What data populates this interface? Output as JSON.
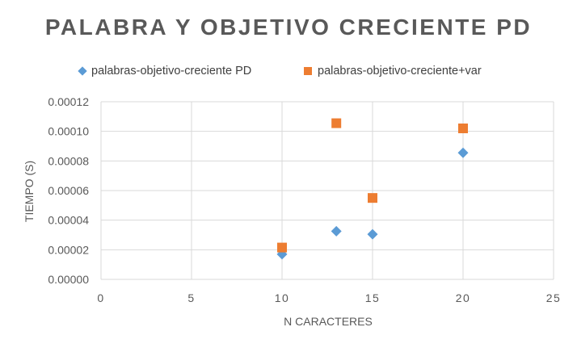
{
  "chart_data": {
    "type": "scatter",
    "title": "PALABRA Y OBJETIVO CRECIENTE PD",
    "xlabel": "N CARACTERES",
    "ylabel": "TIEMPO (S)",
    "xlim": [
      0,
      25
    ],
    "ylim": [
      0,
      0.00012
    ],
    "x_ticks": [
      "0",
      "5",
      "10",
      "15",
      "20",
      "25"
    ],
    "y_ticks": [
      "0.00000",
      "0.00002",
      "0.00004",
      "0.00006",
      "0.00008",
      "0.00010",
      "0.00012"
    ],
    "grid": true,
    "legend_position": "top",
    "series": [
      {
        "name": "palabras-objetivo-creciente PD",
        "marker": "diamond",
        "color": "#5B9BD5",
        "points": [
          [
            10,
            1.7e-05
          ],
          [
            13,
            3.25e-05
          ],
          [
            15,
            3.05e-05
          ],
          [
            20,
            8.55e-05
          ]
        ]
      },
      {
        "name": "palabras-objetivo-creciente+var",
        "marker": "square",
        "color": "#ED7D31",
        "points": [
          [
            10,
            2.15e-05
          ],
          [
            13,
            0.0001055
          ],
          [
            15,
            5.5e-05
          ],
          [
            20,
            0.000102
          ]
        ]
      }
    ]
  }
}
